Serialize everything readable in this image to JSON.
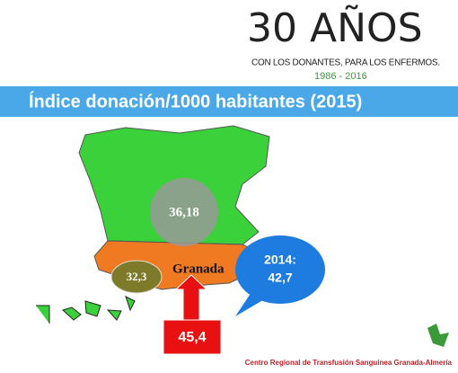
{
  "logo": {
    "title": "30 AÑOS",
    "subtitle": "CON LOS DONANTES, PARA LOS ENFERMOS.",
    "years": "1986 - 2016"
  },
  "header": {
    "title": "Índice donación/1000 habitantes (2015)"
  },
  "map": {
    "spain_value": "36,18",
    "andalucia_value": "32,3",
    "city": "Granada",
    "granada_value": "45,4",
    "callout": {
      "year": "2014:",
      "value": "42,7"
    }
  },
  "footer": {
    "text": "Centro Regional de Transfusión Sanguínea Granada-Almería"
  }
}
